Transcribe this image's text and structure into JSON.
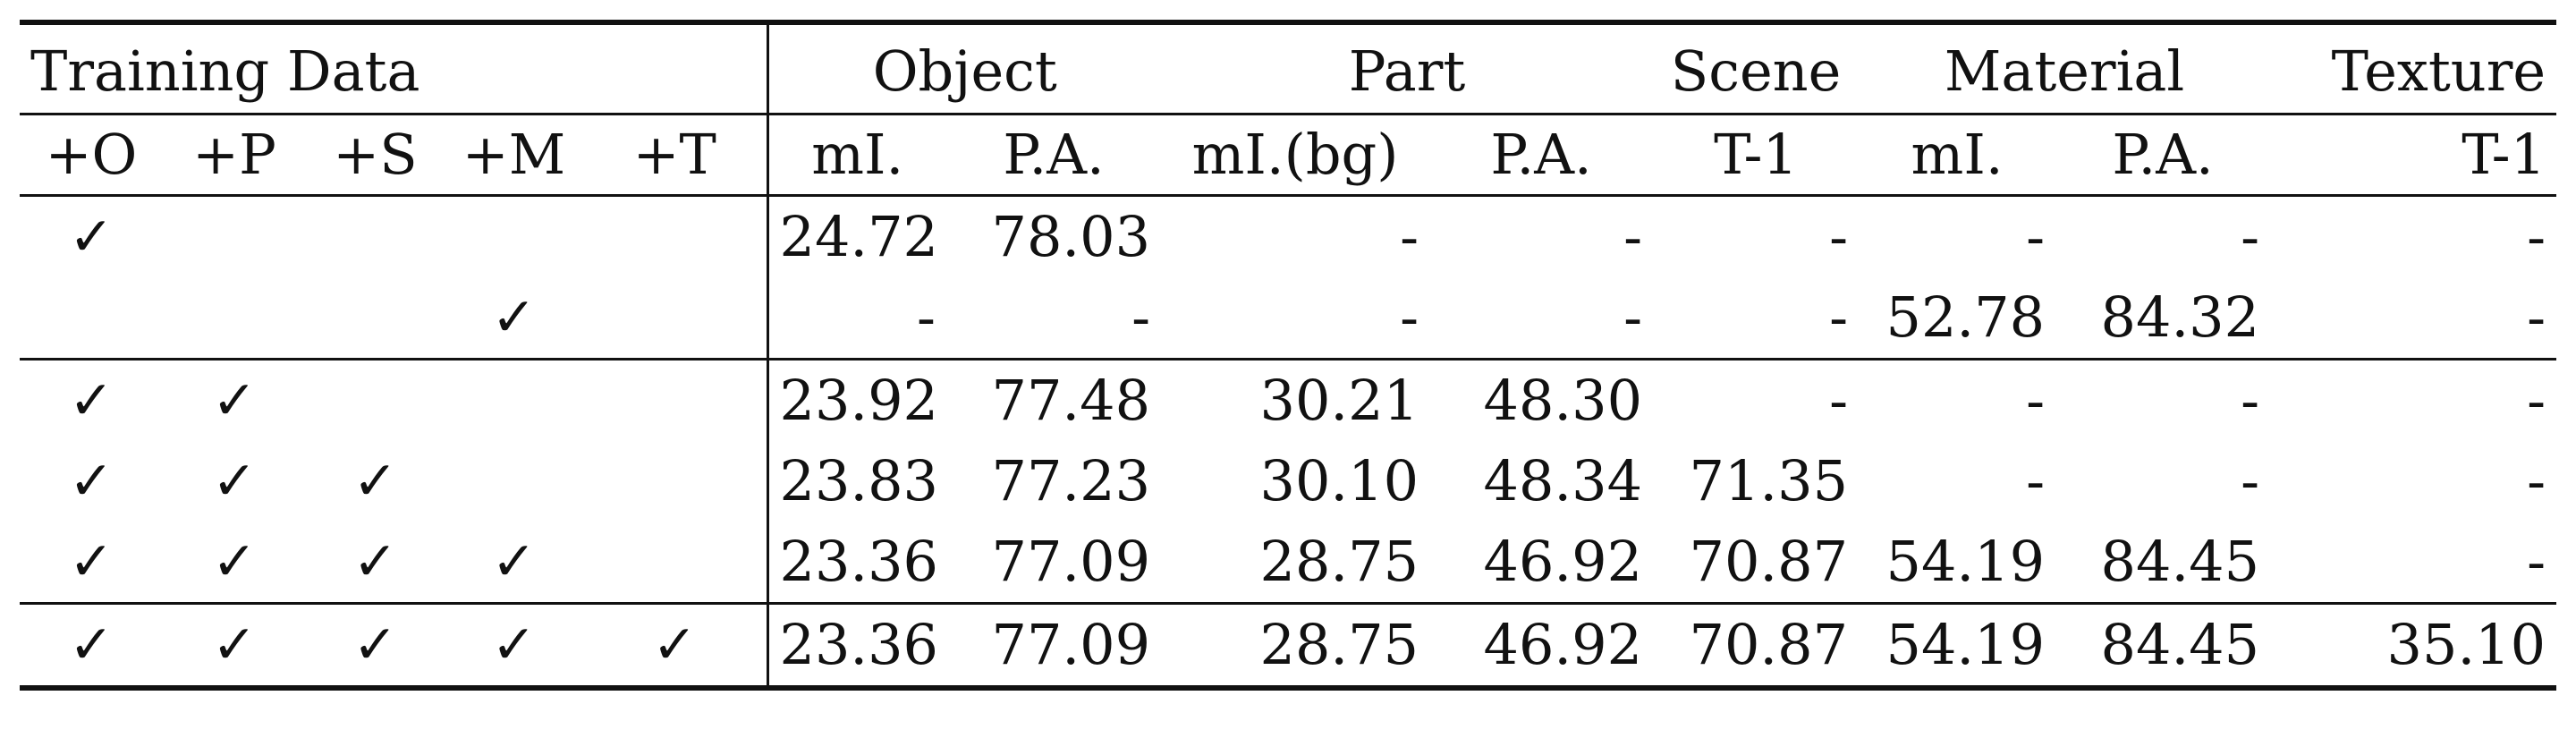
{
  "header": {
    "group": "Training Data",
    "tasks": [
      "Object",
      "Part",
      "Scene",
      "Material",
      "Texture"
    ]
  },
  "subheader": {
    "data_flags": [
      "+O",
      "+P",
      "+S",
      "+M",
      "+T"
    ],
    "metrics": [
      "mI.",
      "P.A.",
      "mI.(bg)",
      "P.A.",
      "T-1",
      "mI.",
      "P.A.",
      "T-1"
    ]
  },
  "check_glyph": "✓",
  "rows": [
    {
      "flags": [
        "✓",
        "",
        "",
        "",
        ""
      ],
      "vals": [
        "24.72",
        "78.03",
        "-",
        "-",
        "-",
        "-",
        "-",
        "-"
      ]
    },
    {
      "flags": [
        "",
        "",
        "",
        "✓",
        ""
      ],
      "vals": [
        "-",
        "-",
        "-",
        "-",
        "-",
        "52.78",
        "84.32",
        "-"
      ]
    },
    {
      "flags": [
        "✓",
        "✓",
        "",
        "",
        ""
      ],
      "vals": [
        "23.92",
        "77.48",
        "30.21",
        "48.30",
        "-",
        "-",
        "-",
        "-"
      ]
    },
    {
      "flags": [
        "✓",
        "✓",
        "✓",
        "",
        ""
      ],
      "vals": [
        "23.83",
        "77.23",
        "30.10",
        "48.34",
        "71.35",
        "-",
        "-",
        "-"
      ]
    },
    {
      "flags": [
        "✓",
        "✓",
        "✓",
        "✓",
        ""
      ],
      "vals": [
        "23.36",
        "77.09",
        "28.75",
        "46.92",
        "70.87",
        "54.19",
        "84.45",
        "-"
      ]
    },
    {
      "flags": [
        "✓",
        "✓",
        "✓",
        "✓",
        "✓"
      ],
      "vals": [
        "23.36",
        "77.09",
        "28.75",
        "46.92",
        "70.87",
        "54.19",
        "84.45",
        "35.10"
      ]
    }
  ]
}
